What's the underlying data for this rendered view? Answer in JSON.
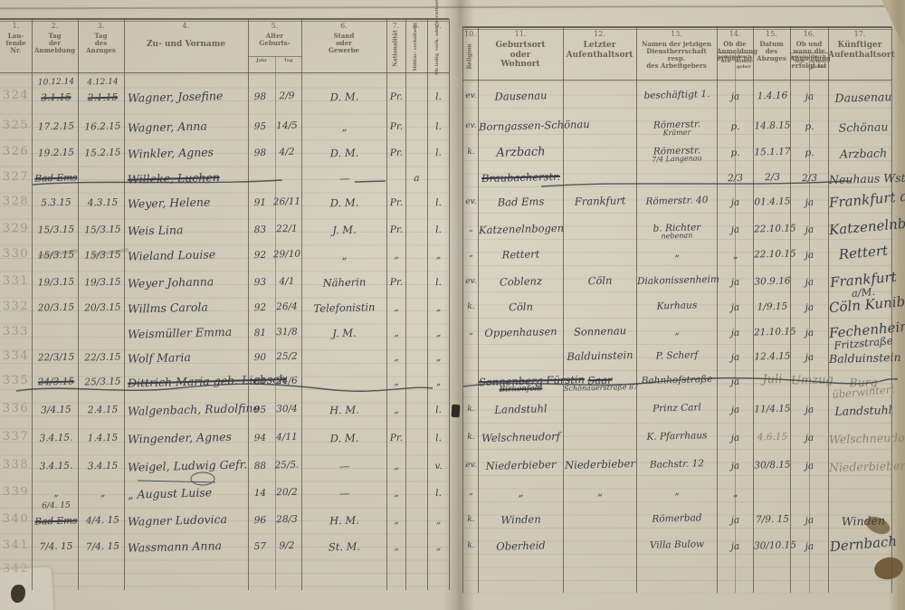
{
  "document": {
    "type": "Melderegister Doppelseite (handschriftliches Verzeichnis)",
    "row_numbers_range": "324–342"
  },
  "left_headers": [
    {
      "num": "1.",
      "lines": [
        "Lau-",
        "fende",
        "Nr."
      ]
    },
    {
      "num": "2.",
      "lines": [
        "Tag",
        "der",
        "Anmeldung"
      ]
    },
    {
      "num": "3.",
      "lines": [
        "Tag",
        "des",
        "Anzuges"
      ]
    },
    {
      "num": "4.",
      "lines": [
        "Zu- und Vorname"
      ],
      "big": true
    },
    {
      "num": "5.",
      "lines": [
        "Alter",
        "Geburts-"
      ],
      "sub": [
        "Jahr",
        "Tag"
      ]
    },
    {
      "num": "6.",
      "lines": [
        "Stand",
        "oder",
        "Gewerbe"
      ]
    },
    {
      "num": "7.",
      "lines": [
        "Nationalität"
      ],
      "vertical": true
    },
    {
      "num": "8.",
      "lines": [
        "Militär-",
        "verhältnis"
      ],
      "vertical": true
    },
    {
      "num": "9.",
      "lines": [
        "Ob ledig, verh.",
        "oder verwitwet"
      ],
      "vertical": true
    }
  ],
  "right_headers": [
    {
      "num": "10.",
      "lines": [
        "Religion"
      ],
      "vertical": true
    },
    {
      "num": "11.",
      "lines": [
        "Geburtsort",
        "oder",
        "Wohnort"
      ],
      "big": true
    },
    {
      "num": "12.",
      "lines": [
        "Letzter",
        "Aufenthaltsort"
      ],
      "big": true
    },
    {
      "num": "13.",
      "lines": [
        "Namen der jetzigen",
        "Dienstherrschaft",
        "resp.",
        "des Arbeitgebers"
      ]
    },
    {
      "num": "14.",
      "lines": [
        "Ob die",
        "Anmeldung",
        "erfolgt ist"
      ],
      "sub": [
        "persön- lich",
        "durch Arbeit- geber"
      ]
    },
    {
      "num": "15.",
      "lines": [
        "Datum",
        "des",
        "Abzuges"
      ]
    },
    {
      "num": "16.",
      "lines": [
        "Ob und",
        "wann die",
        "Abmeldung",
        "erfolgt ist"
      ],
      "sub": [
        "persön- lich",
        "durch Arbeit- geber"
      ]
    },
    {
      "num": "17.",
      "lines": [
        "Künftiger",
        "Aufenthaltsort"
      ],
      "big": true
    }
  ],
  "rows": [
    {
      "nr": "324",
      "d1_over": "10.12.14",
      "d1_struck": "3.1.15",
      "d2_over": "4.12.14",
      "d2_struck": "2.1.15",
      "name": "Wagner, Josefine",
      "jahr": "98",
      "tag": "2/9",
      "stand": "D. M.",
      "nat": "Pr.",
      "fam": "l.",
      "rel": "ev.",
      "geb": "Dausenau",
      "dienst": "beschäftigt 1.",
      "anm": "ja",
      "abzug": "1.4.16",
      "abm": "ja",
      "fut": "Dausenau"
    },
    {
      "nr": "325",
      "d1": "17.2.15",
      "d2": "16.2.15",
      "name": "Wagner, Anna",
      "jahr": "95",
      "tag": "14/5",
      "stand": "„",
      "nat": "Pr.",
      "fam": "l.",
      "rel": "ev.",
      "geb": "Borngassen-Schönau",
      "dienst": "Römerstr.",
      "dienst2": "Krämer",
      "anm": "p.",
      "abzug": "14.8.15",
      "abm": "p.",
      "fut": "Schönau"
    },
    {
      "nr": "326",
      "d1": "19.2.15",
      "d2": "15.2.15",
      "name": "Winkler, Agnes",
      "jahr": "98",
      "tag": "4/2",
      "stand": "D. M.",
      "nat": "Pr.",
      "fam": "l.",
      "rel": "k.",
      "geb": "Arzbach",
      "geb_big": true,
      "dienst": "Römerstr.",
      "dienst2": "7/4 Langenau",
      "anm": "p.",
      "abzug": "15.1.17",
      "abm": "p.",
      "fut": "Arzbach"
    },
    {
      "nr": "327",
      "struck": true,
      "d1": "Bad Ems",
      "name": "Willeke, Luchen",
      "stand": "—",
      "mil": "a",
      "geb": "Braubacherstr.",
      "anm": "2/3",
      "abzug": "2/3",
      "abm": "2/3",
      "fut": "Neuhaus Wst."
    },
    {
      "nr": "328",
      "d1": "5.3.15",
      "d2": "4.3.15",
      "name": "Weyer, Helene",
      "jahr": "91",
      "tag": "26/11",
      "stand": "D. M.",
      "nat": "Pr.",
      "fam": "l.",
      "rel": "ev.",
      "geb": "Bad Ems",
      "auf": "Frankfurt",
      "dienst": "Römerstr. 40",
      "anm": "ja",
      "abzug": "01.4.15",
      "abm": "ja",
      "fut": "Frankfurt a/M",
      "fut_big": true
    },
    {
      "nr": "329",
      "d1": "15/3.15",
      "d2": "15/3.15",
      "name": "Weis Lina",
      "jahr": "83",
      "tag": "22/1",
      "stand": "J. M.",
      "nat": "Pr.",
      "fam": "l.",
      "rel": "„",
      "geb": "Katzenelnbogen",
      "dienst": "b. Richter",
      "dienst2": "nebenan",
      "anm": "ja",
      "abzug": "22.10.15",
      "abm": "ja",
      "fut": "Katzenelnbogen",
      "fut_big": true
    },
    {
      "nr": "330",
      "d1": "15/3.15",
      "d2": "15/3.15",
      "name": "Wieland Louise",
      "jahr": "92",
      "tag": "29/10",
      "stand": "„",
      "nat": "„",
      "fam": "„",
      "rel": "„",
      "geb": "Rettert",
      "dienst": "„",
      "anm": "„",
      "abzug": "22.10.15",
      "abm": "ja",
      "fut": "Rettert",
      "fut_big": true
    },
    {
      "nr": "331",
      "d1": "19/3.15",
      "d2": "19/3.15",
      "name": "Weyer Johanna",
      "jahr": "93",
      "tag": "4/1",
      "stand": "Näherin",
      "nat": "Pr.",
      "fam": "l.",
      "rel": "ev.",
      "geb": "Coblenz",
      "auf": "Cöln",
      "dienst": "Diakonissenheim",
      "anm": "ja",
      "abzug": "30.9.16",
      "abm": "ja",
      "fut": "Frankfurt",
      "fut2": "a/M.",
      "fut_big": true
    },
    {
      "nr": "332",
      "d1": "20/3.15",
      "d2": "20/3.15",
      "name": "Willms Carola",
      "jahr": "92",
      "tag": "26/4",
      "stand": "Telefonistin",
      "nat": "„",
      "fam": "„",
      "rel": "k.",
      "geb": "Cöln",
      "dienst": "Kurhaus",
      "anm": "ja",
      "abzug": "1/9.15",
      "abm": "ja",
      "fut": "Cöln Kunibertsg.",
      "fut_big": true
    },
    {
      "nr": "333",
      "name": "Weismüller Emma",
      "jahr": "81",
      "tag": "31/8",
      "stand": "J. M.",
      "nat": "„",
      "fam": "„",
      "rel": "„",
      "geb": "Oppenhausen",
      "auf": "Sonnenau",
      "dienst": "„",
      "anm": "ja",
      "abzug": "21.10.15",
      "abm": "ja",
      "fut": "Fechenheim b.Ffm",
      "fut2": "Fritzstraße",
      "fut_big": true
    },
    {
      "nr": "334",
      "d1": "22/3/15",
      "d2": "22/3.15",
      "name": "Wolf Maria",
      "jahr": "90",
      "tag": "25/2",
      "nat": "„",
      "fam": "„",
      "auf": "Balduinstein",
      "dienst": "P. Scherf",
      "anm": "ja",
      "abzug": "12.4.15",
      "abm": "ja",
      "fut": "Balduinstein"
    },
    {
      "nr": "335",
      "struck": true,
      "d1": "24/3.15",
      "d2": "25/3.15",
      "name": "Dittrich Maria geb. Liebsch",
      "jahr": "61",
      "tag": "24/6",
      "nat": "„",
      "fam": "„",
      "geb": "Sonnenberg Fürstin",
      "geb2": "Birkenfeld",
      "auf": "Saar",
      "auf_struck": true,
      "auf2": "Schönauerstraße 87",
      "dienst": "Bahnhofstraße",
      "anm": "ja",
      "abzug": "Juli",
      "abzug_big": true,
      "abm": "Umzug",
      "abm_big": true,
      "fut": "Burg",
      "fut2": "überwintert",
      "fut_pencil": true
    },
    {
      "nr": "336",
      "d1": "3/4.15",
      "d2": "2.4.15",
      "name": "Walgenbach, Rudolfine",
      "jahr": "95",
      "tag": "30/4",
      "stand": "H. M.",
      "nat": "„",
      "fam": "l.",
      "rel": "k.",
      "geb": "Landstuhl",
      "dienst": "Prinz Carl",
      "anm": "ja",
      "abzug": "11/4.15",
      "abm": "ja",
      "fut": "Landstuhl"
    },
    {
      "nr": "337",
      "d1": "3.4.15.",
      "d2": "1.4.15",
      "name": "Wingender, Agnes",
      "jahr": "94",
      "tag": "4/11",
      "stand": "D. M.",
      "nat": "Pr.",
      "fam": "l.",
      "rel": "k.",
      "geb": "Welschneudorf",
      "dienst": "K. Pfarrhaus",
      "anm": "ja",
      "abzug": "4.6.15",
      "abzug_pencil": true,
      "abm": "ja",
      "fut": "Welschneudorf",
      "fut_pencil": true
    },
    {
      "nr": "338",
      "d1": "3.4.15.",
      "d2": "3.4.15",
      "name": "Weigel, Ludwig Gefr.",
      "jahr": "88",
      "tag": "25/5.",
      "stand": "—",
      "nat": "„",
      "fam": "v.",
      "rel": "ev.",
      "geb": "Niederbieber",
      "auf": "Niederbieber",
      "dienst": "Bachstr. 12",
      "anm": "ja",
      "abzug": "30/8.15",
      "abm": "ja",
      "fut": "Niederbieber",
      "fut_pencil": true
    },
    {
      "nr": "339",
      "d1": "„",
      "d2": "„",
      "name": "„  August Luise",
      "jahr": "14",
      "tag": "20/2",
      "stand": "—",
      "nat": "„",
      "fam": "l.",
      "rel": "„",
      "geb": "„",
      "auf": "„",
      "dienst": "„",
      "anm": "„"
    },
    {
      "nr": "340",
      "d1_over": "6/4. 15",
      "d1_struck": "Bad Ems",
      "d2": "4/4. 15",
      "name": "Wagner Ludovica",
      "jahr": "96",
      "tag": "28/3",
      "stand": "H. M.",
      "nat": "„",
      "fam": "„",
      "rel": "k.",
      "geb": "Winden",
      "dienst": "Römerbad",
      "anm": "ja",
      "abzug": "7/9. 15",
      "abm": "ja",
      "fut": "Winden"
    },
    {
      "nr": "341",
      "d1": "7/4. 15",
      "d2": "7/4. 15",
      "name": "Wassmann Anna",
      "jahr": "57",
      "tag": "9/2",
      "stand": "St. M.",
      "nat": "„",
      "fam": "„",
      "rel": "k.",
      "geb": "Oberheid",
      "dienst": "Villa Bulow",
      "anm": "ja",
      "abzug": "30/10.15",
      "abm": "ja",
      "fut": "Dernbach",
      "fut_big": true
    },
    {
      "nr": "342"
    }
  ]
}
